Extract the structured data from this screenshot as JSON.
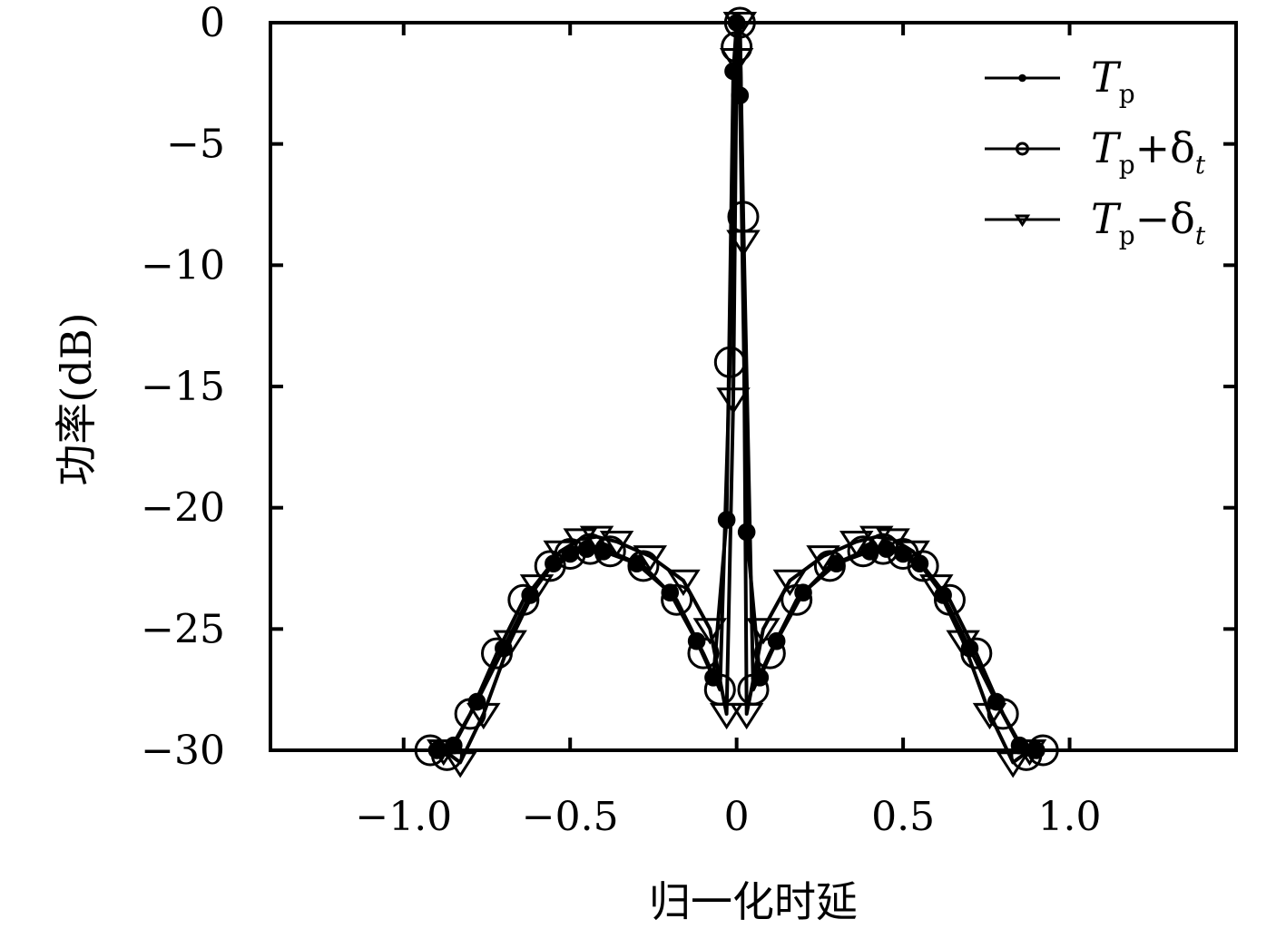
{
  "chart_data": {
    "type": "line",
    "xlabel": "归一化时延",
    "ylabel": "功率(dB)",
    "xlim": [
      -1.4,
      1.5
    ],
    "ylim": [
      -30,
      0
    ],
    "x_ticks": [
      -1.0,
      -0.5,
      0,
      0.5,
      1.0
    ],
    "x_tick_labels": [
      "−1.0",
      "−0.5",
      "0",
      "0.5",
      "1.0"
    ],
    "y_ticks": [
      0,
      -5,
      -10,
      -15,
      -20,
      -25,
      -30
    ],
    "y_tick_labels": [
      "0",
      "−5",
      "−10",
      "−15",
      "−20",
      "−25",
      "−30"
    ],
    "grid": false,
    "legend_position": "top-right",
    "series": [
      {
        "name": "Tp",
        "legend_main": "T",
        "legend_sub": "p",
        "legend_suffix": "",
        "marker": "dot",
        "x": [
          -0.9,
          -0.85,
          -0.78,
          -0.7,
          -0.62,
          -0.55,
          -0.5,
          -0.45,
          -0.4,
          -0.3,
          -0.2,
          -0.12,
          -0.07,
          -0.03,
          -0.01,
          0.0,
          0.01,
          0.03,
          0.07,
          0.12,
          0.2,
          0.3,
          0.4,
          0.45,
          0.5,
          0.55,
          0.62,
          0.7,
          0.78,
          0.85,
          0.9
        ],
        "y": [
          -30.0,
          -29.8,
          -28.0,
          -25.8,
          -23.6,
          -22.3,
          -21.9,
          -21.7,
          -21.8,
          -22.3,
          -23.5,
          -25.5,
          -27.0,
          -20.5,
          -2.0,
          0.0,
          -3.0,
          -21.0,
          -27.0,
          -25.5,
          -23.5,
          -22.3,
          -21.8,
          -21.7,
          -21.9,
          -22.3,
          -23.6,
          -25.8,
          -28.0,
          -29.8,
          -30.0
        ]
      },
      {
        "name": "Tp+δt",
        "legend_main": "T",
        "legend_sub": "p",
        "legend_suffix": "+δ",
        "marker": "circle",
        "x": [
          -0.92,
          -0.87,
          -0.8,
          -0.72,
          -0.64,
          -0.56,
          -0.5,
          -0.44,
          -0.38,
          -0.28,
          -0.18,
          -0.1,
          -0.05,
          -0.02,
          0.0,
          0.01,
          0.02,
          0.05,
          0.1,
          0.18,
          0.28,
          0.38,
          0.44,
          0.5,
          0.56,
          0.64,
          0.72,
          0.8,
          0.87,
          0.92
        ],
        "y": [
          -30.0,
          -30.2,
          -28.5,
          -26.0,
          -23.8,
          -22.4,
          -21.9,
          -21.7,
          -21.8,
          -22.4,
          -23.8,
          -26.0,
          -27.5,
          -14.0,
          -1.0,
          0.0,
          -8.0,
          -27.5,
          -26.0,
          -23.8,
          -22.4,
          -21.8,
          -21.7,
          -21.9,
          -22.4,
          -23.8,
          -26.0,
          -28.5,
          -30.2,
          -30.0
        ]
      },
      {
        "name": "Tp−δt",
        "legend_main": "T",
        "legend_sub": "p",
        "legend_suffix": "−δ",
        "marker": "triangle",
        "x": [
          -0.88,
          -0.83,
          -0.76,
          -0.68,
          -0.6,
          -0.53,
          -0.47,
          -0.42,
          -0.36,
          -0.26,
          -0.16,
          -0.08,
          -0.03,
          -0.01,
          0.0,
          0.01,
          0.02,
          0.03,
          0.08,
          0.16,
          0.26,
          0.36,
          0.42,
          0.47,
          0.53,
          0.6,
          0.68,
          0.76,
          0.83,
          0.88
        ],
        "y": [
          -30.0,
          -30.5,
          -28.5,
          -25.5,
          -23.2,
          -21.8,
          -21.3,
          -21.2,
          -21.4,
          -22.0,
          -23.0,
          -25.0,
          -28.5,
          -15.5,
          -1.5,
          0.0,
          -9.0,
          -28.5,
          -25.0,
          -23.0,
          -22.0,
          -21.4,
          -21.2,
          -21.3,
          -21.8,
          -23.2,
          -25.5,
          -28.5,
          -30.5,
          -30.0
        ]
      }
    ]
  }
}
